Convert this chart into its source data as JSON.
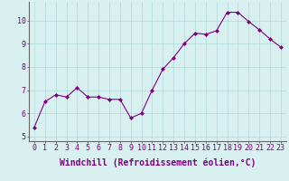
{
  "x": [
    0,
    1,
    2,
    3,
    4,
    5,
    6,
    7,
    8,
    9,
    10,
    11,
    12,
    13,
    14,
    15,
    16,
    17,
    18,
    19,
    20,
    21,
    22,
    23
  ],
  "y": [
    5.4,
    6.5,
    6.8,
    6.7,
    7.1,
    6.7,
    6.7,
    6.6,
    6.6,
    5.8,
    6.0,
    7.0,
    7.9,
    8.4,
    9.0,
    9.45,
    9.4,
    9.55,
    10.35,
    10.35,
    9.95,
    9.6,
    9.2,
    8.85
  ],
  "line_color": "#800080",
  "marker": "D",
  "marker_size": 2,
  "bg_color": "#d8f0f0",
  "grid_color": "#b0d8d8",
  "xlabel": "Windchill (Refroidissement éolien,°C)",
  "xlabel_fontsize": 7,
  "tick_fontsize": 6,
  "yticks": [
    5,
    6,
    7,
    8,
    9,
    10
  ],
  "ylim": [
    4.8,
    10.8
  ],
  "xlim": [
    -0.5,
    23.5
  ],
  "line_width": 0.8
}
